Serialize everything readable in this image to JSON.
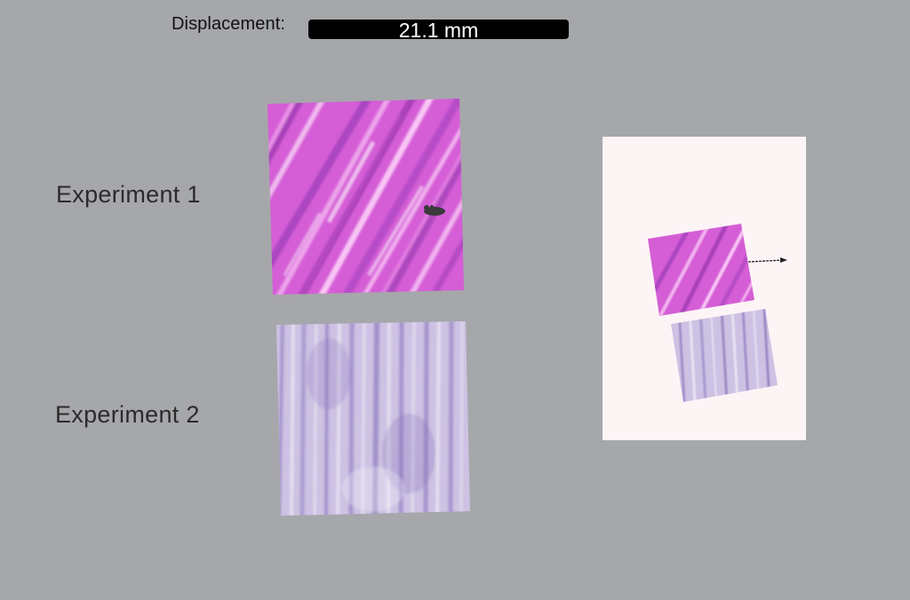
{
  "displacement": {
    "label": "Displacement:",
    "value": "21.1 mm"
  },
  "experiments": [
    {
      "label": "Experiment 1",
      "stain_color": "#d862d8",
      "fiber_color": "#8a2fae"
    },
    {
      "label": "Experiment 2",
      "stain_color": "#c9bde0",
      "fiber_color": "#7a62b6"
    }
  ],
  "colors": {
    "background": "#a5a7aa",
    "thumbnail_panel": "#fdf4f6",
    "bar": "#000000"
  },
  "icons": {
    "probe": "probe-icon",
    "displacement_arrow": "arrow-right-icon"
  }
}
